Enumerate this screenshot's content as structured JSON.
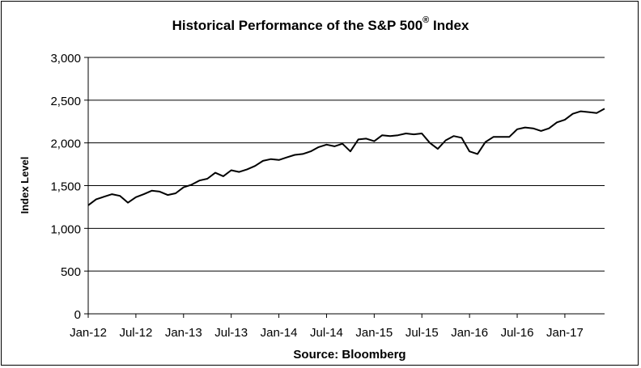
{
  "chart_data": {
    "type": "line",
    "title": "Historical Performance of the S&P 500",
    "title_mark": "®",
    "title_suffix": " Index",
    "ylabel": "Index Level",
    "xlabel": "Source: Bloomberg",
    "ylim": [
      0,
      3000
    ],
    "yticks": [
      "0",
      "500",
      "1,000",
      "1,500",
      "2,000",
      "2,500",
      "3,000"
    ],
    "ytick_values": [
      0,
      500,
      1000,
      1500,
      2000,
      2500,
      3000
    ],
    "xtick_labels": [
      "Jan-12",
      "Jul-12",
      "Jan-13",
      "Jul-13",
      "Jan-14",
      "Jul-14",
      "Jan-15",
      "Jul-15",
      "Jan-16",
      "Jul-16",
      "Jan-17"
    ],
    "xlim": [
      "2012-01",
      "2017-06"
    ],
    "grid": "horizontal",
    "line_color": "#000000",
    "series": [
      {
        "x": [
          "2012-01",
          "2012-02",
          "2012-03",
          "2012-04",
          "2012-05",
          "2012-06",
          "2012-07",
          "2012-08",
          "2012-09",
          "2012-10",
          "2012-11",
          "2012-12",
          "2013-01",
          "2013-02",
          "2013-03",
          "2013-04",
          "2013-05",
          "2013-06",
          "2013-07",
          "2013-08",
          "2013-09",
          "2013-10",
          "2013-11",
          "2013-12",
          "2014-01",
          "2014-02",
          "2014-03",
          "2014-04",
          "2014-05",
          "2014-06",
          "2014-07",
          "2014-08",
          "2014-09",
          "2014-10",
          "2014-11",
          "2014-12",
          "2015-01",
          "2015-02",
          "2015-03",
          "2015-04",
          "2015-05",
          "2015-06",
          "2015-07",
          "2015-08",
          "2015-09",
          "2015-10",
          "2015-11",
          "2015-12",
          "2016-01",
          "2016-02",
          "2016-03",
          "2016-04",
          "2016-05",
          "2016-06",
          "2016-07",
          "2016-08",
          "2016-09",
          "2016-10",
          "2016-11",
          "2016-12",
          "2017-01",
          "2017-02",
          "2017-03",
          "2017-04",
          "2017-05",
          "2017-06"
        ],
        "values": [
          1270,
          1340,
          1370,
          1400,
          1380,
          1300,
          1365,
          1400,
          1440,
          1430,
          1390,
          1410,
          1480,
          1510,
          1560,
          1580,
          1650,
          1610,
          1680,
          1660,
          1690,
          1730,
          1790,
          1810,
          1800,
          1830,
          1860,
          1870,
          1900,
          1950,
          1980,
          1960,
          1990,
          1900,
          2040,
          2050,
          2020,
          2090,
          2080,
          2090,
          2110,
          2100,
          2110,
          2000,
          1930,
          2030,
          2080,
          2060,
          1900,
          1870,
          2010,
          2070,
          2070,
          2070,
          2160,
          2180,
          2170,
          2140,
          2170,
          2240,
          2270,
          2340,
          2370,
          2360,
          2350,
          2400
        ]
      }
    ]
  }
}
